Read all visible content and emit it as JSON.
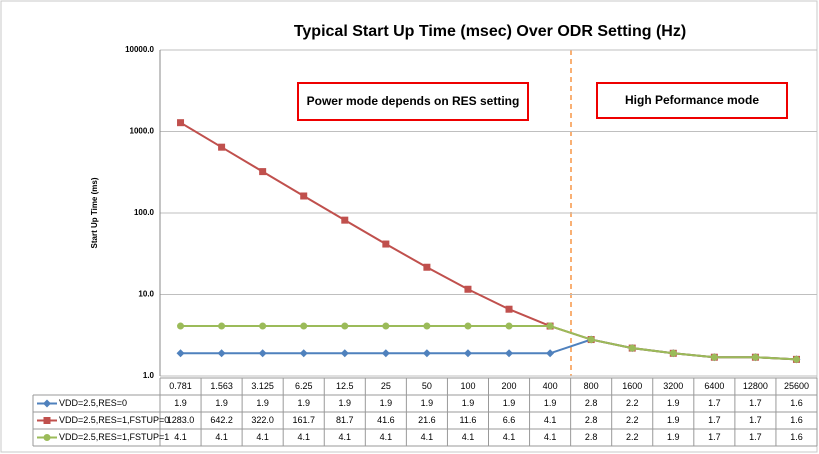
{
  "chart_data": {
    "type": "line",
    "title": "Typical Start Up Time (msec) Over ODR Setting (Hz)",
    "y_label": "Start Up Time (ms)",
    "log_y": true,
    "grid": true,
    "ylim": [
      1,
      10000
    ],
    "yticks": [
      {
        "value": 1,
        "label": "1.0"
      },
      {
        "value": 10,
        "label": "10.0"
      },
      {
        "value": 100,
        "label": "100.0"
      },
      {
        "value": 1000,
        "label": "1000.0"
      },
      {
        "value": 10000,
        "label": "10000.0"
      }
    ],
    "categories": [
      "0.781",
      "1.563",
      "3.125",
      "6.25",
      "12.5",
      "25",
      "50",
      "100",
      "200",
      "400",
      "800",
      "1600",
      "3200",
      "6400",
      "12800",
      "25600"
    ],
    "annotations": [
      "Power mode depends on RES setting",
      "High Peformance mode"
    ],
    "series": [
      {
        "name": "VDD=2.5,RES=0",
        "color": "#4f81bd",
        "marker": "diamond",
        "values": [
          1.9,
          1.9,
          1.9,
          1.9,
          1.9,
          1.9,
          1.9,
          1.9,
          1.9,
          1.9,
          2.8,
          2.2,
          1.9,
          1.7,
          1.7,
          1.6
        ]
      },
      {
        "name": "VDD=2.5,RES=1,FSTUP=0",
        "color": "#c0504d",
        "marker": "square",
        "values": [
          1283,
          642.2,
          322,
          161.7,
          81.7,
          41.6,
          21.6,
          11.6,
          6.6,
          4.1,
          2.8,
          2.2,
          1.9,
          1.7,
          1.7,
          1.6
        ],
        "value_labels": [
          "1283.0",
          "642.2",
          "322.0",
          "161.7",
          "81.7",
          "41.6",
          "21.6",
          "11.6",
          "6.6",
          "4.1",
          "2.8",
          "2.2",
          "1.9",
          "1.7",
          "1.7",
          "1.6"
        ]
      },
      {
        "name": "VDD=2.5,RES=1,FSTUP=1",
        "color": "#9bbb59",
        "marker": "circle",
        "values": [
          4.1,
          4.1,
          4.1,
          4.1,
          4.1,
          4.1,
          4.1,
          4.1,
          4.1,
          4.1,
          2.8,
          2.2,
          1.9,
          1.7,
          1.7,
          1.6
        ]
      }
    ]
  }
}
